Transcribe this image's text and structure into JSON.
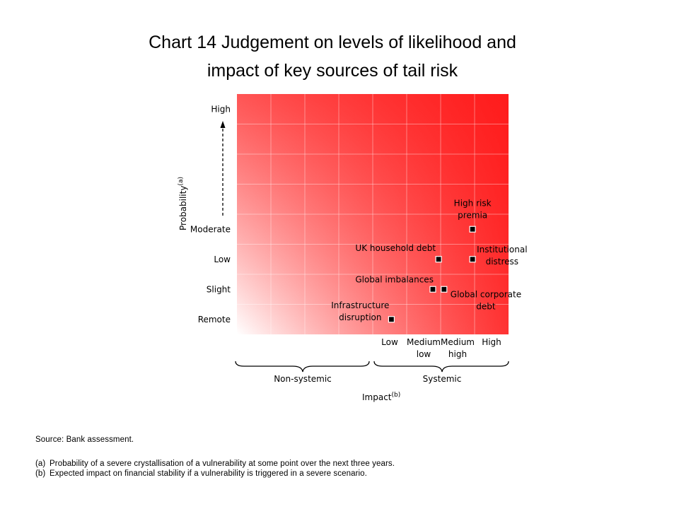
{
  "title_line1": "Chart 14  Judgement on levels of likelihood and",
  "title_line2": "impact of key sources of tail risk",
  "chart_data": {
    "type": "scatter",
    "y_axis": {
      "label": "Probability",
      "label_superscript": "(a)",
      "tick_labels": [
        "Remote",
        "Slight",
        "Low",
        "Moderate",
        "High"
      ]
    },
    "x_axis": {
      "label": "Impact",
      "label_superscript": "(b)",
      "tick_labels": [
        {
          "line1": "Low",
          "line2": ""
        },
        {
          "line1": "Medium",
          "line2": "low"
        },
        {
          "line1": "Medium",
          "line2": "high"
        },
        {
          "line1": "High",
          "line2": ""
        }
      ],
      "groups": [
        "Non-systemic",
        "Systemic"
      ]
    },
    "gradient_colors": {
      "low": "#ffffff",
      "high": "#ff1414"
    },
    "points": [
      {
        "lines": [
          "High risk",
          "premia"
        ],
        "x": 2.44,
        "y": 3.0
      },
      {
        "lines": [
          "UK household debt"
        ],
        "x": 1.44,
        "y": 2.0
      },
      {
        "lines": [
          "Institutional",
          "distress"
        ],
        "x": 2.44,
        "y": 2.0
      },
      {
        "lines": [
          "Global imbalances"
        ],
        "x": 1.27,
        "y": 1.0
      },
      {
        "lines": [
          "Global corporate",
          "debt"
        ],
        "x": 1.6,
        "y": 1.0
      },
      {
        "lines": [
          "Infrastructure",
          "disruption"
        ],
        "x": 0.05,
        "y": 0.0
      }
    ]
  },
  "footnotes": {
    "source": "Source:  Bank assessment.",
    "a_tag": "(a)",
    "a_text": "Probability of a severe crystallisation of a vulnerability at some point over the next three years.",
    "b_tag": "(b)",
    "b_text": "Expected impact on financial stability if a vulnerability is triggered in a severe scenario."
  }
}
